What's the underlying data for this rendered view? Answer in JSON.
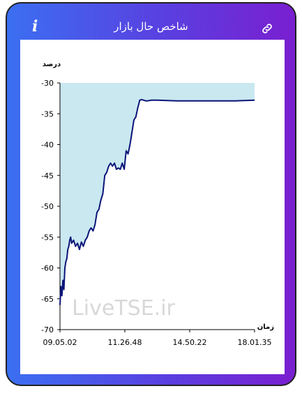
{
  "header": {
    "title": "شاخص حال بازار",
    "info_icon": "info-icon",
    "link_icon": "link-icon",
    "info_glyph": "i"
  },
  "colors": {
    "gradient_start": "#3b6ff2",
    "gradient_end": "#7a1fd0",
    "line": "#0a1478",
    "fill": "#c9e8f0"
  },
  "chart_data": {
    "type": "area",
    "ylabel": "درصد",
    "xlabel": "زمان",
    "ylim": [
      -70,
      -30
    ],
    "yticks": [
      -30,
      -35,
      -40,
      -45,
      -50,
      -55,
      -60,
      -65,
      -70
    ],
    "xticks": [
      "09.05.02",
      "11.26.48",
      "14.50.22",
      "18.01.35"
    ],
    "watermark": "LiveTSE.ir",
    "series": [
      {
        "x": [
          0,
          0.5,
          1,
          1.5,
          2,
          2.5,
          3,
          3.5,
          4,
          4.5,
          5,
          5.5,
          6,
          7,
          8,
          9,
          10,
          11,
          12,
          13,
          14,
          15,
          16,
          17,
          18,
          19,
          20,
          21,
          22,
          23,
          24,
          25,
          26,
          27,
          28,
          29,
          30,
          31,
          32,
          33,
          34,
          35,
          36,
          37,
          38,
          39,
          40,
          41,
          42,
          43,
          44,
          45,
          46,
          47,
          47.5,
          48,
          50,
          55,
          60,
          70,
          80,
          90,
          100
        ],
        "values": [
          -66,
          -63,
          -64.5,
          -62,
          -63.5,
          -60,
          -59,
          -58.5,
          -57,
          -56.5,
          -55.5,
          -55,
          -56,
          -55.5,
          -56.5,
          -56,
          -57,
          -55.8,
          -56.5,
          -55.5,
          -55,
          -54,
          -53.5,
          -54,
          -53,
          -51,
          -50.5,
          -49,
          -48,
          -45,
          -44.5,
          -43.5,
          -43,
          -43.5,
          -43,
          -44,
          -43.8,
          -44,
          -43,
          -44,
          -41,
          -41.5,
          -40,
          -38,
          -36,
          -35.5,
          -34,
          -32.8,
          -32.7,
          -32.8,
          -32.9,
          -32.9,
          -32.85,
          -32.8,
          -32.8,
          -32.8,
          -32.8,
          -32.85,
          -32.9,
          -32.9,
          -32.9,
          -32.9,
          -32.8
        ]
      }
    ]
  }
}
